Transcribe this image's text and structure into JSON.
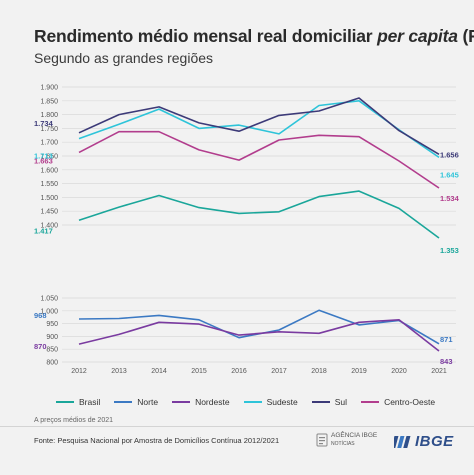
{
  "title_main": "Rendimento médio mensal real domiciliar",
  "title_italic": "per capita",
  "title_unit": "(R$)",
  "subtitle": "Segundo as grandes regiões",
  "note": "A preços médios de 2021",
  "source": "Fonte: Pesquisa Nacional por Amostra de Domicílios Contínua 2012/2021",
  "agency_logo_text": "AGÊNCIA IBGE",
  "agency_logo_sub": "NOTÍCIAS",
  "ibge_logo_text": "IBGE",
  "chart_data": [
    {
      "type": "line",
      "x": [
        2012,
        2013,
        2014,
        2015,
        2016,
        2017,
        2018,
        2019,
        2020,
        2021
      ],
      "xlabel": "",
      "ylabel": "",
      "ylim": [
        1400,
        1900
      ],
      "yticks": [
        "1.400",
        "1.450",
        "1.500",
        "1.550",
        "1.600",
        "1.650",
        "1.700",
        "1.750",
        "1.800",
        "1.850",
        "1.900"
      ],
      "grid": true,
      "series": [
        {
          "name": "Sudeste",
          "color": "#2ec4d9",
          "values": [
            1713,
            1765,
            1820,
            1750,
            1762,
            1730,
            1833,
            1850,
            1745,
            1645
          ],
          "label_start": "1.713",
          "label_end": "1.645"
        },
        {
          "name": "Sul",
          "color": "#3c3a78",
          "values": [
            1734,
            1800,
            1828,
            1770,
            1740,
            1797,
            1813,
            1860,
            1742,
            1656
          ],
          "label_start": "1.734",
          "label_end": "1.656"
        },
        {
          "name": "Centro-Oeste",
          "color": "#b23d8d",
          "values": [
            1663,
            1738,
            1738,
            1672,
            1635,
            1708,
            1725,
            1720,
            1632,
            1534
          ],
          "label_start": "1.663",
          "label_end": "1.534"
        },
        {
          "name": "Brasil",
          "color": "#1aa69a",
          "values": [
            1417,
            1465,
            1507,
            1463,
            1442,
            1448,
            1503,
            1523,
            1460,
            1353
          ],
          "label_start": "1.417",
          "label_end": "1.353"
        }
      ]
    },
    {
      "type": "line",
      "x": [
        2012,
        2013,
        2014,
        2015,
        2016,
        2017,
        2018,
        2019,
        2020,
        2021
      ],
      "xlabel": "",
      "ylabel": "",
      "ylim": [
        800,
        1050
      ],
      "yticks": [
        "800",
        "850",
        "900",
        "950",
        "1.000",
        "1.050"
      ],
      "grid": true,
      "series": [
        {
          "name": "Norte",
          "color": "#3b79c3",
          "values": [
            968,
            970,
            982,
            965,
            895,
            925,
            1002,
            945,
            962,
            871
          ],
          "label_start": "968",
          "label_end": "871"
        },
        {
          "name": "Nordeste",
          "color": "#7a3ba0",
          "values": [
            870,
            908,
            955,
            948,
            905,
            918,
            912,
            955,
            965,
            843
          ],
          "label_start": "870",
          "label_end": "843"
        }
      ]
    }
  ],
  "legend": [
    {
      "name": "Brasil",
      "color": "#1aa69a"
    },
    {
      "name": "Norte",
      "color": "#3b79c3"
    },
    {
      "name": "Nordeste",
      "color": "#7a3ba0"
    },
    {
      "name": "Sudeste",
      "color": "#2ec4d9"
    },
    {
      "name": "Sul",
      "color": "#3c3a78"
    },
    {
      "name": "Centro-Oeste",
      "color": "#b23d8d"
    }
  ]
}
